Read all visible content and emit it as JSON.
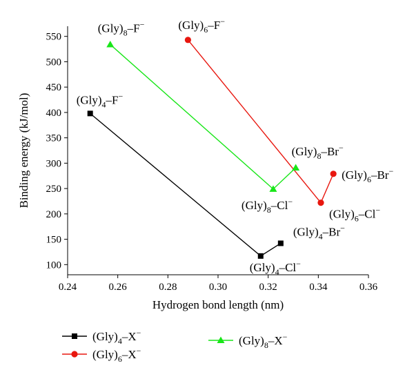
{
  "chart_data": {
    "type": "line",
    "title": "",
    "xlabel": "Hydrogen bond length (nm)",
    "ylabel": "Binding energy (kJ/mol)",
    "xlim": [
      0.24,
      0.36
    ],
    "ylim": [
      80,
      570
    ],
    "xticks": [
      0.24,
      0.26,
      0.28,
      0.3,
      0.32,
      0.34,
      0.36
    ],
    "xtick_labels": [
      "0.24",
      "0.26",
      "0.28",
      "0.30",
      "0.32",
      "0.34",
      "0.36"
    ],
    "yticks": [
      100,
      150,
      200,
      250,
      300,
      350,
      400,
      450,
      500,
      550
    ],
    "ytick_labels": [
      "100",
      "150",
      "200",
      "250",
      "300",
      "350",
      "400",
      "450",
      "500",
      "550"
    ],
    "grid": false,
    "legend_position": "bottom",
    "series": [
      {
        "name": "(Gly)4–X⁻",
        "marker": "square",
        "color": "#000000",
        "points": [
          {
            "x": 0.249,
            "y": 398,
            "label": "(Gly)4–F⁻"
          },
          {
            "x": 0.317,
            "y": 117,
            "label": "(Gly)4–Cl⁻"
          },
          {
            "x": 0.325,
            "y": 142,
            "label": "(Gly)4–Br⁻"
          }
        ]
      },
      {
        "name": "(Gly)6–X⁻",
        "marker": "circle",
        "color": "#e8170f",
        "points": [
          {
            "x": 0.288,
            "y": 543,
            "label": "(Gly)6–F⁻"
          },
          {
            "x": 0.341,
            "y": 222,
            "label": "(Gly)6–Cl⁻"
          },
          {
            "x": 0.346,
            "y": 279,
            "label": "(Gly)6–Br⁻"
          }
        ]
      },
      {
        "name": "(Gly)8–X⁻",
        "marker": "triangle",
        "color": "#19e619",
        "points": [
          {
            "x": 0.257,
            "y": 534,
            "label": "(Gly)8–F⁻"
          },
          {
            "x": 0.322,
            "y": 249,
            "label": "(Gly)8–Cl⁻"
          },
          {
            "x": 0.331,
            "y": 291,
            "label": "(Gly)8–Br⁻"
          }
        ]
      }
    ]
  }
}
